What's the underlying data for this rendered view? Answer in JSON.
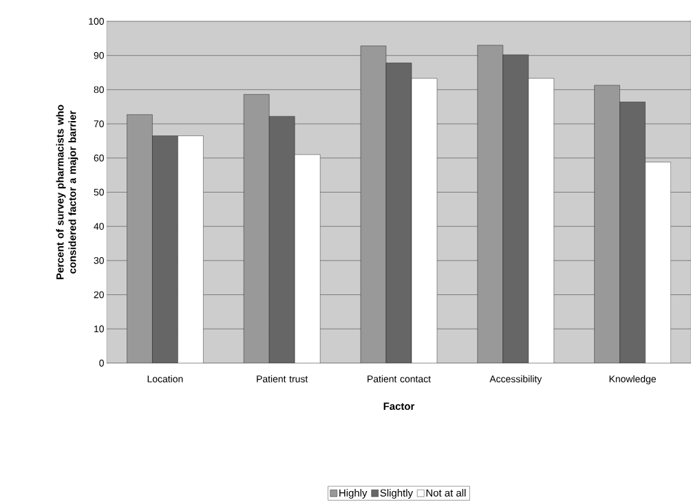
{
  "chart_data": {
    "type": "bar",
    "xlabel": "Factor",
    "ylabel": "Percent of survey pharmacists who considered factor a major barrier",
    "categories": [
      "Location",
      "Patient trust",
      "Patient contact",
      "Accessibility",
      "Knowledge"
    ],
    "series": [
      {
        "name": "Highly",
        "color": "#999999",
        "values": [
          72.7,
          78.6,
          92.8,
          93.0,
          81.3
        ]
      },
      {
        "name": "Slightly",
        "color": "#666666",
        "values": [
          66.5,
          72.2,
          87.8,
          90.2,
          76.4
        ]
      },
      {
        "name": "Not at all",
        "color": "#ffffff",
        "values": [
          66.5,
          61.0,
          83.3,
          83.3,
          58.8
        ]
      }
    ],
    "ylim": [
      0,
      100
    ],
    "yticks": [
      0,
      10,
      20,
      30,
      40,
      50,
      60,
      70,
      80,
      90,
      100
    ],
    "grid": "y",
    "legend": "bottom"
  }
}
